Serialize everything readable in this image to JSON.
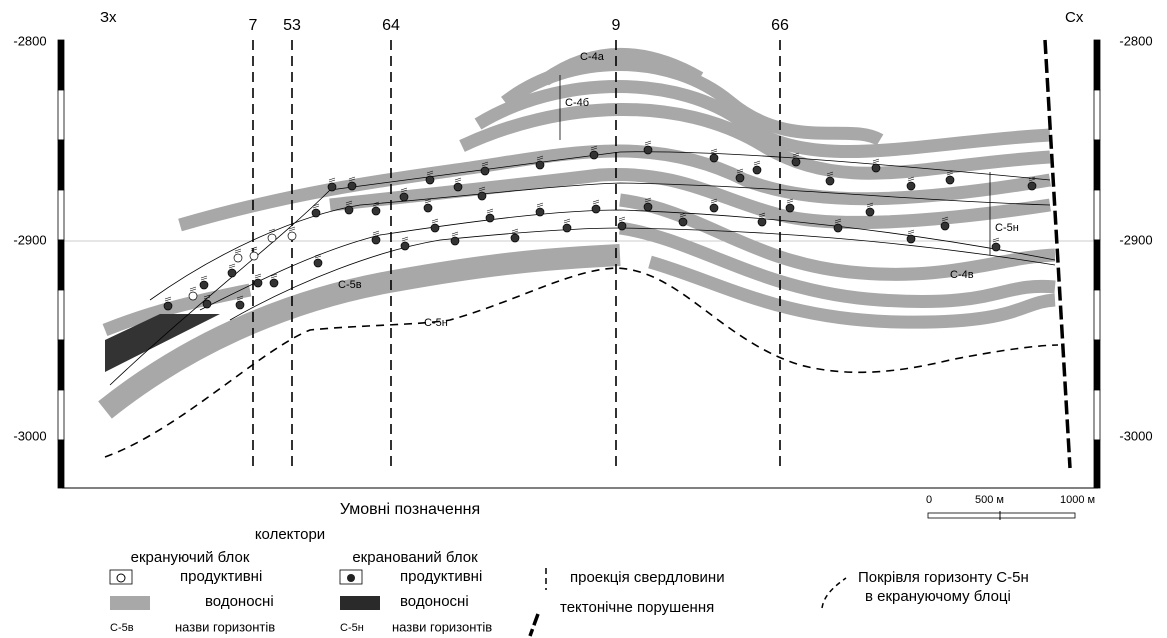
{
  "section": {
    "west": "Зх",
    "east": "Сх",
    "wells": [
      "7",
      "53",
      "64",
      "9",
      "66"
    ],
    "depth_labels_left": [
      "-2800",
      "-2900",
      "-3000"
    ],
    "depth_labels_right": [
      "-2800",
      "-2900",
      "-3000"
    ],
    "horizon_labels": [
      "С-4а",
      "С-4б",
      "С-5н",
      "С-5в",
      "С-4в",
      "С-5н"
    ]
  },
  "scale": {
    "labels": [
      "0",
      "500 м",
      "1000 м"
    ]
  },
  "legend": {
    "title": "Умовні позначення",
    "collectors": "колектори",
    "screening_block": "екрануючий блок",
    "screened_block": "екранований блок",
    "productive_left": "продуктивні",
    "water_left": "водоносні",
    "horizon_example_left": "С-5в",
    "horizon_names_left": "назви горизонтів",
    "productive_right": "продуктивні",
    "water_right": "водоносні",
    "horizon_example_right": "С-5н",
    "horizon_names_right": "назви горизонтів",
    "well_projection": "проекція свердловини",
    "fault": "тектонічне порушення",
    "roof_line1": "Покрівля горизонту С-5н",
    "roof_line2": "в екрануючому блоці"
  }
}
